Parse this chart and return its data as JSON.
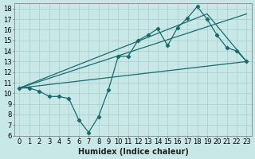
{
  "xlabel": "Humidex (Indice chaleur)",
  "bg_color": "#c8e8e8",
  "line_color": "#1a6b6b",
  "grid_color": "#a8cccc",
  "xlim": [
    -0.5,
    23.5
  ],
  "ylim": [
    6,
    18.5
  ],
  "xticks": [
    0,
    1,
    2,
    3,
    4,
    5,
    6,
    7,
    8,
    9,
    10,
    11,
    12,
    13,
    14,
    15,
    16,
    17,
    18,
    19,
    20,
    21,
    22,
    23
  ],
  "yticks": [
    6,
    7,
    8,
    9,
    10,
    11,
    12,
    13,
    14,
    15,
    16,
    17,
    18
  ],
  "zigzag_x": [
    0,
    1,
    2,
    3,
    4,
    5,
    6,
    7,
    8,
    9,
    10,
    11,
    12,
    13,
    14,
    15,
    16,
    17,
    18,
    19,
    20,
    21,
    22,
    23
  ],
  "zigzag_y": [
    10.5,
    10.5,
    10.2,
    9.7,
    9.7,
    9.5,
    7.5,
    6.3,
    7.8,
    10.3,
    13.5,
    13.5,
    15.0,
    15.5,
    16.1,
    14.5,
    16.2,
    17.1,
    18.2,
    17.0,
    15.5,
    14.3,
    14.0,
    13.0
  ],
  "upper_line_x": [
    0,
    19,
    23
  ],
  "upper_line_y": [
    10.5,
    17.5,
    13.0
  ],
  "mid_line_x": [
    0,
    23
  ],
  "mid_line_y": [
    10.5,
    17.5
  ],
  "lower_line_x": [
    0,
    23
  ],
  "lower_line_y": [
    10.5,
    13.0
  ],
  "fontsize_label": 7,
  "fontsize_tick": 6
}
